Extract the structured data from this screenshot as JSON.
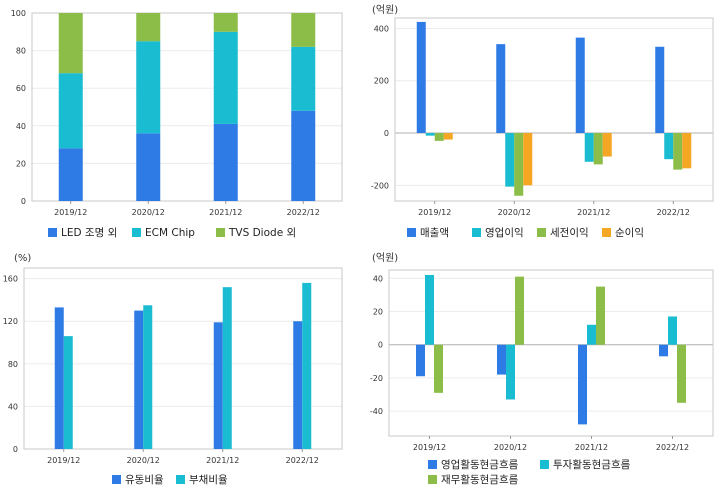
{
  "chart_data": [
    {
      "id": "revenue-mix",
      "type": "bar",
      "stacked": true,
      "unit": "",
      "categories": [
        "2019/12",
        "2020/12",
        "2021/12",
        "2022/12"
      ],
      "ylim": [
        0,
        100
      ],
      "yticks": [
        0,
        20,
        40,
        60,
        80,
        100
      ],
      "grid": true,
      "legend_position": "bottom",
      "series": [
        {
          "name": "LED 조명 외",
          "color": "#2f7be5",
          "values": [
            28,
            36,
            41,
            48
          ]
        },
        {
          "name": "ECM Chip",
          "color": "#19bcd0",
          "values": [
            40,
            49,
            49,
            34
          ]
        },
        {
          "name": "TVS Diode 외",
          "color": "#8bbd48",
          "values": [
            32,
            15,
            10,
            18
          ]
        }
      ]
    },
    {
      "id": "profit",
      "type": "bar",
      "unit": "(억원)",
      "categories": [
        "2019/12",
        "2020/12",
        "2021/12",
        "2022/12"
      ],
      "ylim": [
        -260,
        440
      ],
      "yticks": [
        -200,
        0,
        200,
        400
      ],
      "grid": true,
      "legend_position": "bottom",
      "series": [
        {
          "name": "매출액",
          "color": "#2f7be5",
          "values": [
            425,
            340,
            365,
            330
          ]
        },
        {
          "name": "영업이익",
          "color": "#19bcd0",
          "values": [
            -10,
            -205,
            -110,
            -100
          ]
        },
        {
          "name": "세전이익",
          "color": "#8bbd48",
          "values": [
            -30,
            -240,
            -120,
            -140
          ]
        },
        {
          "name": "순이익",
          "color": "#f5a623",
          "values": [
            -25,
            -200,
            -90,
            -135
          ]
        }
      ]
    },
    {
      "id": "ratios",
      "type": "bar",
      "unit": "(%)",
      "categories": [
        "2019/12",
        "2020/12",
        "2021/12",
        "2022/12"
      ],
      "ylim": [
        0,
        170
      ],
      "yticks": [
        0,
        40,
        80,
        120,
        160
      ],
      "grid": true,
      "legend_position": "bottom",
      "series": [
        {
          "name": "유동비율",
          "color": "#2f7be5",
          "values": [
            133,
            130,
            119,
            120
          ]
        },
        {
          "name": "부채비율",
          "color": "#19bcd0",
          "values": [
            106,
            135,
            152,
            156
          ]
        }
      ]
    },
    {
      "id": "cashflow",
      "type": "bar",
      "unit": "(억원)",
      "categories": [
        "2019/12",
        "2020/12",
        "2021/12",
        "2022/12"
      ],
      "ylim": [
        -55,
        45
      ],
      "yticks": [
        -40,
        -20,
        0,
        20,
        40
      ],
      "grid": true,
      "legend_position": "bottom",
      "series": [
        {
          "name": "영업활동현금흐름",
          "color": "#2f7be5",
          "values": [
            -19,
            -18,
            -48,
            -7
          ]
        },
        {
          "name": "투자활동현금흐름",
          "color": "#19bcd0",
          "values": [
            42,
            -33,
            12,
            17
          ]
        },
        {
          "name": "재무활동현금흐름",
          "color": "#8bbd48",
          "values": [
            -29,
            41,
            35,
            -35
          ]
        }
      ]
    }
  ]
}
